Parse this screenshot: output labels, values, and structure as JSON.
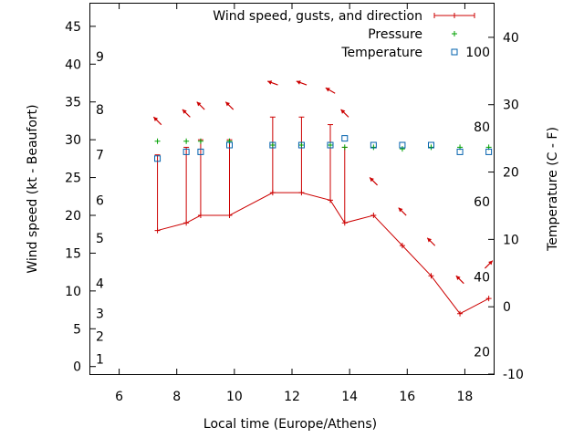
{
  "chart_data": {
    "type": "line",
    "xlabel": "Local time (Europe/Athens)",
    "ylabel": "Wind speed (kt - Beaufort)",
    "y2label": "Temperature (C - F)",
    "xlim": [
      5,
      19
    ],
    "ylim": [
      -1,
      48
    ],
    "y2lim": [
      -10,
      45
    ],
    "x_ticks": [
      6,
      8,
      10,
      12,
      14,
      16,
      18
    ],
    "y_ticks": [
      0,
      5,
      10,
      15,
      20,
      25,
      30,
      35,
      40,
      45
    ],
    "y2_ticks": [
      -10,
      0,
      10,
      20,
      30,
      40
    ],
    "beaufort_labels": [
      {
        "label": "1",
        "y": 1
      },
      {
        "label": "2",
        "y": 4
      },
      {
        "label": "3",
        "y": 7
      },
      {
        "label": "4",
        "y": 11
      },
      {
        "label": "5",
        "y": 17
      },
      {
        "label": "6",
        "y": 22
      },
      {
        "label": "7",
        "y": 28
      },
      {
        "label": "8",
        "y": 34
      },
      {
        "label": "9",
        "y": 41
      }
    ],
    "fahrenheit_labels": [
      {
        "label": "20",
        "y2": -6.7
      },
      {
        "label": "40",
        "y2": 4.4
      },
      {
        "label": "60",
        "y2": 15.6
      },
      {
        "label": "80",
        "y2": 26.7
      },
      {
        "label": "100",
        "y2": 37.8
      }
    ],
    "legend": {
      "placement": "top-right"
    },
    "grid": false,
    "series": [
      {
        "name": "Wind speed, gusts, and direction",
        "color": "#cc0000",
        "x": [
          7.33,
          8.33,
          8.83,
          9.83,
          11.33,
          12.33,
          13.33,
          13.83,
          14.83,
          15.83,
          16.83,
          17.83,
          18.83
        ],
        "y": [
          18,
          19,
          20,
          20,
          23,
          23,
          22,
          19,
          20,
          16,
          12,
          7,
          9
        ],
        "gusts": [
          28,
          29,
          30,
          30,
          33,
          33,
          32,
          29,
          null,
          null,
          null,
          null,
          null
        ],
        "dir_deg": [
          315,
          315,
          315,
          315,
          290,
          290,
          300,
          315,
          315,
          315,
          315,
          315,
          45
        ]
      },
      {
        "name": "Pressure",
        "color": "#00a000",
        "x": [
          7.33,
          8.33,
          8.83,
          9.83,
          11.33,
          12.33,
          13.33,
          13.83,
          14.83,
          15.83,
          16.83,
          17.83,
          18.83
        ],
        "y": [
          29.8,
          29.8,
          29.8,
          29.8,
          29.3,
          29.3,
          29.3,
          29.0,
          29.0,
          28.8,
          29.0,
          29.0,
          29.0
        ]
      },
      {
        "name": "Temperature",
        "color": "#0060ad",
        "x": [
          7.33,
          8.33,
          8.83,
          9.83,
          11.33,
          12.33,
          13.33,
          13.83,
          14.83,
          15.83,
          16.83,
          17.83,
          18.83
        ],
        "y2": [
          22,
          23,
          23,
          24,
          24,
          24,
          24,
          25,
          24,
          24,
          24,
          23,
          23
        ]
      }
    ]
  }
}
